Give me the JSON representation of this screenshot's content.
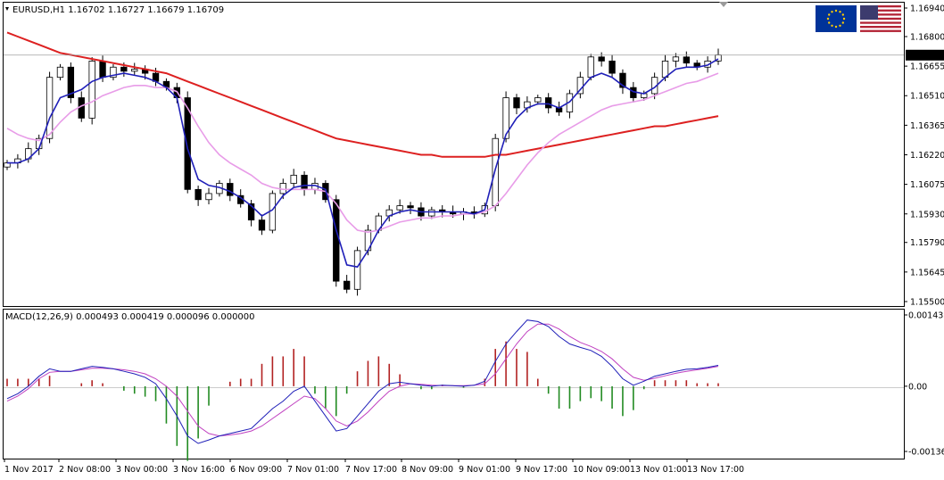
{
  "header": {
    "symbol_line": "EURUSD,H1  1.16702 1.16727 1.16679 1.16709",
    "macd_line": "MACD(12,26,9) 0.000493 0.000419 0.000096 0.000000"
  },
  "flags": {
    "left": "eu-flag-icon",
    "right": "us-flag-icon"
  },
  "colors": {
    "candle": "#000000",
    "ma_fast": "#1f1fb8",
    "ma_mid": "#e89ce8",
    "ma_slow": "#dd2020",
    "hist_pos": "#b22222",
    "hist_neg": "#228b22",
    "macd": "#1f1fb8",
    "signal": "#c040c0",
    "price_badge": "#000000"
  },
  "chart_data": [
    {
      "type": "candlestick",
      "title": "EURUSD,H1",
      "ylim": [
        1.155,
        1.1694
      ],
      "y_ticks": [
        "1.16940",
        "1.16800",
        "1.16655",
        "1.16510",
        "1.16365",
        "1.16220",
        "1.16075",
        "1.15930",
        "1.15790",
        "1.15645",
        "1.15500"
      ],
      "current_price": "1.16709",
      "x_ticks": [
        "1 Nov 2017",
        "2 Nov 08:00",
        "3 Nov 00:00",
        "3 Nov 16:00",
        "6 Nov 09:00",
        "7 Nov 01:00",
        "7 Nov 17:00",
        "8 Nov 09:00",
        "9 Nov 01:00",
        "9 Nov 17:00",
        "10 Nov 09:00",
        "13 Nov 01:00",
        "13 Nov 17:00"
      ],
      "series": [
        {
          "name": "close",
          "values": [
            1.1618,
            1.162,
            1.1625,
            1.163,
            1.166,
            1.1665,
            1.165,
            1.164,
            1.1668,
            1.166,
            1.1665,
            1.1663,
            1.1664,
            1.1662,
            1.1658,
            1.1655,
            1.165,
            1.1605,
            1.16,
            1.1603,
            1.1608,
            1.1602,
            1.1598,
            1.159,
            1.1585,
            1.1603,
            1.1608,
            1.1612,
            1.1605,
            1.1608,
            1.16,
            1.156,
            1.1556,
            1.1575,
            1.1585,
            1.1592,
            1.1595,
            1.1597,
            1.1596,
            1.1592,
            1.1595,
            1.1594,
            1.1593,
            1.1594,
            1.1593,
            1.1597,
            1.163,
            1.165,
            1.1645,
            1.1648,
            1.165,
            1.1645,
            1.1643,
            1.1652,
            1.166,
            1.167,
            1.1668,
            1.1662,
            1.1655,
            1.165,
            1.1652,
            1.166,
            1.1668,
            1.167,
            1.1667,
            1.1665,
            1.1668,
            1.1671
          ]
        },
        {
          "name": "ma_fast",
          "values": [
            1.1618,
            1.1618,
            1.162,
            1.1625,
            1.164,
            1.165,
            1.1652,
            1.1654,
            1.1658,
            1.166,
            1.1661,
            1.1662,
            1.1661,
            1.166,
            1.1658,
            1.1655,
            1.165,
            1.1625,
            1.161,
            1.1607,
            1.1606,
            1.1604,
            1.1601,
            1.1597,
            1.1592,
            1.1595,
            1.1602,
            1.1606,
            1.1607,
            1.1607,
            1.1605,
            1.1585,
            1.1568,
            1.1567,
            1.1575,
            1.1585,
            1.1592,
            1.1594,
            1.1595,
            1.1594,
            1.1594,
            1.1594,
            1.1594,
            1.1594,
            1.1593,
            1.1595,
            1.1615,
            1.1632,
            1.164,
            1.1645,
            1.1647,
            1.1647,
            1.1645,
            1.1648,
            1.1654,
            1.166,
            1.1662,
            1.166,
            1.1656,
            1.1653,
            1.1652,
            1.1655,
            1.166,
            1.1664,
            1.1665,
            1.1665,
            1.1666,
            1.1669
          ]
        },
        {
          "name": "ma_mid",
          "values": [
            1.1635,
            1.1632,
            1.163,
            1.1629,
            1.1632,
            1.1638,
            1.1643,
            1.1646,
            1.1648,
            1.1651,
            1.1653,
            1.1655,
            1.1656,
            1.1656,
            1.1655,
            1.1655,
            1.1653,
            1.1645,
            1.1636,
            1.1628,
            1.1622,
            1.1618,
            1.1615,
            1.1612,
            1.1608,
            1.1606,
            1.1605,
            1.1605,
            1.1605,
            1.1605,
            1.1604,
            1.1598,
            1.159,
            1.1585,
            1.1584,
            1.1585,
            1.1587,
            1.1589,
            1.159,
            1.1591,
            1.1591,
            1.1592,
            1.1592,
            1.1593,
            1.1593,
            1.1594,
            1.1597,
            1.1603,
            1.161,
            1.1617,
            1.1623,
            1.1628,
            1.1632,
            1.1635,
            1.1638,
            1.1641,
            1.1644,
            1.1646,
            1.1647,
            1.1648,
            1.1649,
            1.1651,
            1.1653,
            1.1655,
            1.1657,
            1.1658,
            1.166,
            1.1662
          ]
        },
        {
          "name": "ma_slow",
          "values": [
            1.1682,
            1.168,
            1.1678,
            1.1676,
            1.1674,
            1.1672,
            1.1671,
            1.167,
            1.1669,
            1.1668,
            1.1667,
            1.1666,
            1.1665,
            1.1664,
            1.1663,
            1.1662,
            1.166,
            1.1658,
            1.1656,
            1.1654,
            1.1652,
            1.165,
            1.1648,
            1.1646,
            1.1644,
            1.1642,
            1.164,
            1.1638,
            1.1636,
            1.1634,
            1.1632,
            1.163,
            1.1629,
            1.1628,
            1.1627,
            1.1626,
            1.1625,
            1.1624,
            1.1623,
            1.1622,
            1.1622,
            1.1621,
            1.1621,
            1.1621,
            1.1621,
            1.1621,
            1.1622,
            1.1622,
            1.1623,
            1.1624,
            1.1625,
            1.1626,
            1.1627,
            1.1628,
            1.1629,
            1.163,
            1.1631,
            1.1632,
            1.1633,
            1.1634,
            1.1635,
            1.1636,
            1.1636,
            1.1637,
            1.1638,
            1.1639,
            1.164,
            1.1641
          ]
        }
      ]
    },
    {
      "type": "macd",
      "title": "MACD(12,26,9)",
      "ylim": [
        -0.001365,
        0.001433
      ],
      "y_ticks": [
        "0.001433",
        "0.00",
        "-0.001365"
      ],
      "series": [
        {
          "name": "macd",
          "values": [
            -0.00025,
            -0.00015,
            0.0,
            0.0002,
            0.00035,
            0.0003,
            0.0003,
            0.00035,
            0.0004,
            0.00038,
            0.00035,
            0.0003,
            0.00025,
            0.00018,
            5e-05,
            -0.00025,
            -0.0006,
            -0.001,
            -0.00115,
            -0.00108,
            -0.001,
            -0.00095,
            -0.0009,
            -0.00085,
            -0.00065,
            -0.00045,
            -0.0003,
            -0.0001,
            0.0,
            -0.0003,
            -0.0006,
            -0.0009,
            -0.00085,
            -0.0006,
            -0.00035,
            -0.0001,
            5e-05,
            8e-05,
            5e-05,
            2e-05,
            0.0,
            2e-05,
            1e-05,
            0.0,
            2e-05,
            0.0001,
            0.0005,
            0.00085,
            0.0011,
            0.00133,
            0.0013,
            0.0012,
            0.001,
            0.00085,
            0.00078,
            0.00072,
            0.0006,
            0.0004,
            0.00015,
            2e-05,
            0.0001,
            0.0002,
            0.00025,
            0.0003,
            0.00034,
            0.00035,
            0.00038,
            0.00042
          ]
        },
        {
          "name": "signal",
          "values": [
            -0.0003,
            -0.0002,
            -5e-05,
            0.00015,
            0.00028,
            0.0003,
            0.0003,
            0.00033,
            0.00036,
            0.00036,
            0.00035,
            0.00033,
            0.0003,
            0.00025,
            0.00015,
            0.0,
            -0.0002,
            -0.0005,
            -0.0008,
            -0.00095,
            -0.001,
            -0.00098,
            -0.00095,
            -0.0009,
            -0.0008,
            -0.00065,
            -0.0005,
            -0.00035,
            -0.0002,
            -0.00025,
            -0.00045,
            -0.0007,
            -0.0008,
            -0.0007,
            -0.00052,
            -0.0003,
            -0.0001,
            0.0,
            5e-05,
            4e-05,
            2e-05,
            1e-05,
            1e-05,
            1e-05,
            2e-05,
            5e-05,
            0.00025,
            0.00055,
            0.00085,
            0.0011,
            0.00125,
            0.00125,
            0.00115,
            0.001,
            0.00088,
            0.0008,
            0.0007,
            0.00055,
            0.00035,
            0.00018,
            0.00012,
            0.00016,
            0.00021,
            0.00026,
            0.0003,
            0.00033,
            0.00036,
            0.0004
          ]
        }
      ]
    }
  ]
}
